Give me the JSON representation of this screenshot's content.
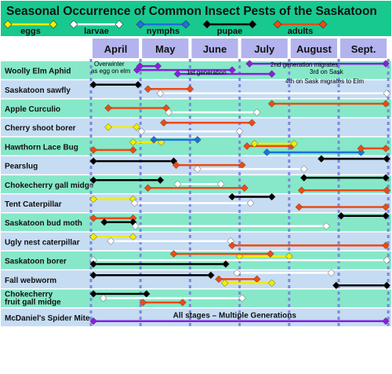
{
  "chart_data": {
    "type": "timeline",
    "title": "Seasonal Occurrence of Common Insect Pests of the Saskatoon",
    "months": [
      "April",
      "May",
      "June",
      "July",
      "August",
      "Sept."
    ],
    "stages": [
      {
        "key": "eggs",
        "name": "eggs",
        "color": "#f2ee00"
      },
      {
        "key": "larvae",
        "name": "larvae",
        "color": "#ffffff"
      },
      {
        "key": "nymphs",
        "name": "nymphs",
        "color": "#1f6fe0"
      },
      {
        "key": "pupae",
        "name": "pupae",
        "color": "#000000"
      },
      {
        "key": "adults",
        "name": "adults",
        "color": "#ee4a12"
      }
    ],
    "colors": {
      "title_bg": "#17c98f",
      "row_green": "#86e8c8",
      "row_blue": "#c5dcf3",
      "month_box": "#b3b3ee",
      "dash": "#7f86dc",
      "multi": "#8a1ee0"
    },
    "multi_text": "All stages – Multiple Generations",
    "pests": [
      {
        "name": "Woolly Elm Aphid",
        "bars": [
          {
            "stage": "multi",
            "start": 0.99,
            "end": 1.35
          },
          {
            "stage": "multi",
            "start": 0.93,
            "end": 2.85
          },
          {
            "stage": "multi",
            "start": 1.75,
            "end": 3.65
          },
          {
            "stage": "multi",
            "start": 3.2,
            "end": 5.95
          }
        ],
        "notes": [
          "Overwinter",
          "as egg on elm",
          "1st generation",
          "2nd generation migrates",
          "3rd on Sask",
          "4th on Sask migrates to Elm"
        ]
      },
      {
        "name": "Saskatoon sawfly",
        "bars": [
          {
            "stage": "pupae",
            "start": 0.05,
            "end": 0.95
          },
          {
            "stage": "adults",
            "start": 1.15,
            "end": 2.0
          },
          {
            "stage": "larvae",
            "start": 1.4,
            "end": 5.97
          }
        ]
      },
      {
        "name": "Apple Curculio",
        "bars": [
          {
            "stage": "adults",
            "start": 3.65,
            "end": 5.95
          },
          {
            "stage": "adults",
            "start": 0.35,
            "end": 1.52
          },
          {
            "stage": "larvae",
            "start": 1.57,
            "end": 3.35
          }
        ]
      },
      {
        "name": "Cherry shoot borer",
        "bars": [
          {
            "stage": "adults",
            "start": 1.47,
            "end": 3.25
          },
          {
            "stage": "eggs",
            "start": 0.35,
            "end": 0.92
          },
          {
            "stage": "larvae",
            "start": 1.02,
            "end": 3.0
          }
        ]
      },
      {
        "name": "Hawthorn Lace Bug",
        "bars": [
          {
            "stage": "eggs",
            "start": 0.85,
            "end": 1.42
          },
          {
            "stage": "adults",
            "start": 3.15,
            "end": 4.05
          },
          {
            "stage": "adults",
            "start": 0.05,
            "end": 0.85
          },
          {
            "stage": "nymphs",
            "start": 1.27,
            "end": 2.15
          },
          {
            "stage": "nymphs",
            "start": 3.55,
            "end": 5.45
          },
          {
            "stage": "eggs",
            "start": 3.3,
            "end": 4.1
          },
          {
            "stage": "adults",
            "start": 5.45,
            "end": 5.95
          }
        ]
      },
      {
        "name": "Pearslug",
        "bars": [
          {
            "stage": "pupae",
            "start": 0.05,
            "end": 1.67
          },
          {
            "stage": "adults",
            "start": 1.72,
            "end": 3.05
          },
          {
            "stage": "larvae",
            "start": 2.15,
            "end": 4.3
          },
          {
            "stage": "pupae",
            "start": 4.65,
            "end": 5.97
          }
        ]
      },
      {
        "name": "Chokecherry gall midge",
        "bars": [
          {
            "stage": "pupae",
            "start": 0.05,
            "end": 1.4
          },
          {
            "stage": "larvae",
            "start": 1.75,
            "end": 2.62
          },
          {
            "stage": "adults",
            "start": 1.15,
            "end": 3.1
          },
          {
            "stage": "pupae",
            "start": 4.3,
            "end": 5.95
          },
          {
            "stage": "adults",
            "start": 4.25,
            "end": 5.97
          }
        ]
      },
      {
        "name": "Tent Caterpillar",
        "bars": [
          {
            "stage": "eggs",
            "start": 0.05,
            "end": 0.85
          },
          {
            "stage": "larvae",
            "start": 0.88,
            "end": 3.22
          },
          {
            "stage": "adults",
            "start": 4.2,
            "end": 5.95
          },
          {
            "stage": "pupae",
            "start": 2.85,
            "end": 3.65
          }
        ]
      },
      {
        "name": "Saskatoon  bud moth",
        "bars": [
          {
            "stage": "adults",
            "start": 0.05,
            "end": 0.85
          },
          {
            "stage": "pupae",
            "start": 0.27,
            "end": 0.85
          },
          {
            "stage": "larvae",
            "start": 0.9,
            "end": 4.75
          },
          {
            "stage": "pupae",
            "start": 5.05,
            "end": 5.95
          }
        ]
      },
      {
        "name": "Ugly nest caterpillar",
        "bars": [
          {
            "stage": "eggs",
            "start": 0.05,
            "end": 0.85
          },
          {
            "stage": "larvae",
            "start": 0.4,
            "end": 2.82
          },
          {
            "stage": "adults",
            "start": 2.85,
            "end": 5.95
          }
        ]
      },
      {
        "name": "Saskatoon borer",
        "bars": [
          {
            "stage": "eggs",
            "start": 3.0,
            "end": 4.0
          },
          {
            "stage": "larvae",
            "start": 0.05,
            "end": 5.97
          },
          {
            "stage": "pupae",
            "start": 0.05,
            "end": 2.72
          },
          {
            "stage": "adults",
            "start": 1.67,
            "end": 3.62
          }
        ]
      },
      {
        "name": "Fall webworm",
        "bars": [
          {
            "stage": "pupae",
            "start": 0.05,
            "end": 2.42
          },
          {
            "stage": "adults",
            "start": 2.58,
            "end": 3.35
          },
          {
            "stage": "eggs",
            "start": 2.7,
            "end": 3.65
          },
          {
            "stage": "larvae",
            "start": 2.95,
            "end": 4.85
          },
          {
            "stage": "pupae",
            "start": 4.95,
            "end": 5.97
          }
        ]
      },
      {
        "name": "Chokecherry fruit gall midge",
        "bars": [
          {
            "stage": "pupae",
            "start": 0.05,
            "end": 1.12
          },
          {
            "stage": "larvae",
            "start": 0.25,
            "end": 3.05
          },
          {
            "stage": "adults",
            "start": 1.05,
            "end": 1.85
          }
        ]
      },
      {
        "name": "McDaniel's Spider Mite",
        "bars": [
          {
            "stage": "multi",
            "start": 0.05,
            "end": 5.95
          }
        ]
      }
    ]
  }
}
